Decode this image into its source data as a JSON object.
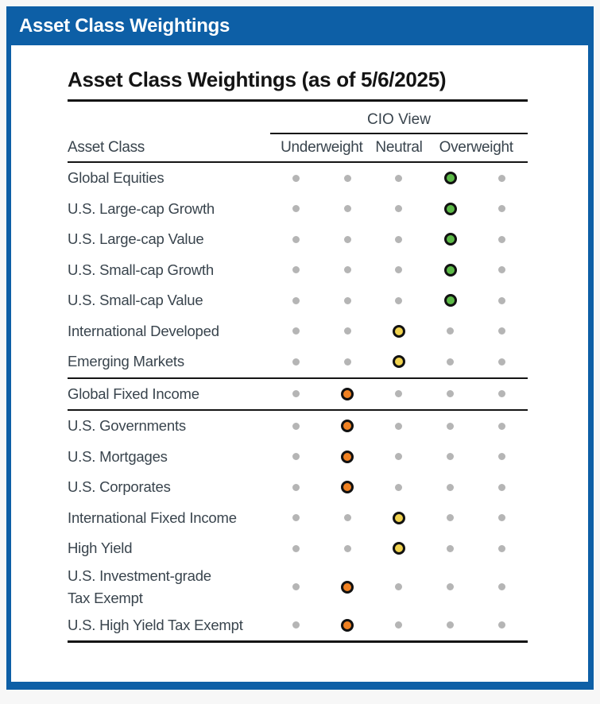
{
  "panel": {
    "header_title": "Asset Class Weightings",
    "title": "Asset Class Weightings (as of 5/6/2025)"
  },
  "table": {
    "corner_header": "Asset Class",
    "group_header": "CIO View",
    "column_headers": [
      "Underweight",
      "Neutral",
      "Overweight"
    ],
    "scale_positions": 5,
    "rows": [
      {
        "label": "Global Equities",
        "rating": 4,
        "color": "green"
      },
      {
        "label": "U.S. Large-cap Growth",
        "rating": 4,
        "color": "green"
      },
      {
        "label": "U.S. Large-cap Value",
        "rating": 4,
        "color": "green"
      },
      {
        "label": "U.S. Small-cap Growth",
        "rating": 4,
        "color": "green"
      },
      {
        "label": "U.S. Small-cap Value",
        "rating": 4,
        "color": "green"
      },
      {
        "label": "International Developed",
        "rating": 3,
        "color": "yellow"
      },
      {
        "label": "Emerging Markets",
        "rating": 3,
        "color": "yellow",
        "divider_after": true
      },
      {
        "label": "Global Fixed Income",
        "rating": 2,
        "color": "orange",
        "divider_after": true
      },
      {
        "label": "U.S. Governments",
        "rating": 2,
        "color": "orange"
      },
      {
        "label": "U.S. Mortgages",
        "rating": 2,
        "color": "orange"
      },
      {
        "label": "U.S. Corporates",
        "rating": 2,
        "color": "orange"
      },
      {
        "label": "International Fixed Income",
        "rating": 3,
        "color": "yellow"
      },
      {
        "label": "High Yield",
        "rating": 3,
        "color": "yellow"
      },
      {
        "label": "U.S. Investment-grade\nTax Exempt",
        "rating": 2,
        "color": "orange"
      },
      {
        "label": "U.S. High Yield Tax Exempt",
        "rating": 2,
        "color": "orange"
      }
    ]
  },
  "colors": {
    "accent_blue": "#0D5FA6",
    "dot_gray": "#B5B5B5",
    "dot_green": "#5CB947",
    "dot_yellow": "#F0D24E",
    "dot_orange": "#F08122",
    "rule_black": "#141414",
    "text_slate": "#39444D"
  },
  "chart_data": {
    "type": "table",
    "title": "Asset Class Weightings (as of 5/6/2025)",
    "group_header": "CIO View",
    "scale": {
      "min": 1,
      "max": 5,
      "region_labels": [
        "Underweight",
        "Neutral",
        "Overweight"
      ],
      "region_positions": {
        "Underweight": [
          1,
          2
        ],
        "Neutral": [
          3
        ],
        "Overweight": [
          4,
          5
        ]
      }
    },
    "categories": [
      "Global Equities",
      "U.S. Large-cap Growth",
      "U.S. Large-cap Value",
      "U.S. Small-cap Growth",
      "U.S. Small-cap Value",
      "International Developed",
      "Emerging Markets",
      "Global Fixed Income",
      "U.S. Governments",
      "U.S. Mortgages",
      "U.S. Corporates",
      "International Fixed Income",
      "High Yield",
      "U.S. Investment-grade Tax Exempt",
      "U.S. High Yield Tax Exempt"
    ],
    "values": [
      4,
      4,
      4,
      4,
      4,
      3,
      3,
      2,
      2,
      2,
      2,
      3,
      3,
      2,
      2
    ],
    "marker_colors": [
      "green",
      "green",
      "green",
      "green",
      "green",
      "yellow",
      "yellow",
      "orange",
      "orange",
      "orange",
      "orange",
      "yellow",
      "yellow",
      "orange",
      "orange"
    ],
    "sections": [
      {
        "name": "equities",
        "row_indexes": [
          0,
          1,
          2,
          3,
          4,
          5,
          6
        ]
      },
      {
        "name": "global-fixed-income",
        "row_indexes": [
          7
        ]
      },
      {
        "name": "fixed-income-detail",
        "row_indexes": [
          8,
          9,
          10,
          11,
          12,
          13,
          14
        ]
      }
    ],
    "legend_position": "none",
    "grid": false
  }
}
